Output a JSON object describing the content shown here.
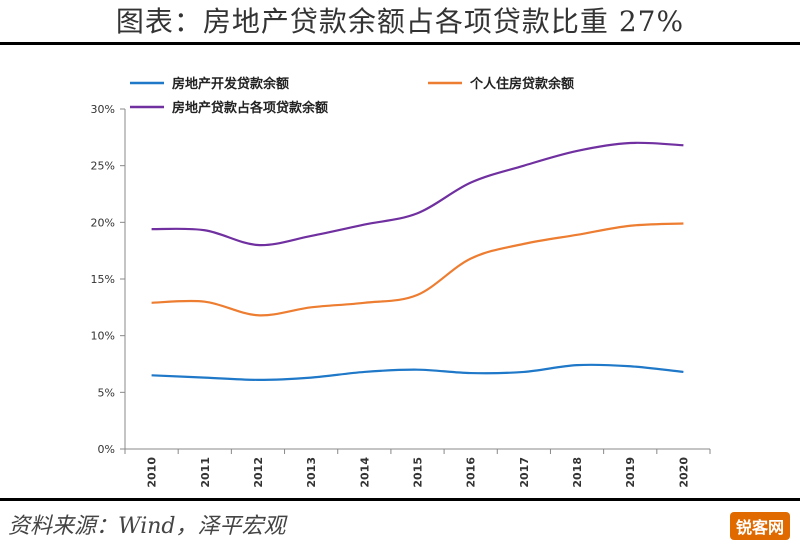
{
  "page": {
    "title": "图表：房地产贷款余额占各项贷款比重 27%",
    "source": "资料来源：Wind，泽平宏观",
    "watermark": "锐客网"
  },
  "chart_data": {
    "type": "line",
    "x": [
      "2010",
      "2011",
      "2012",
      "2013",
      "2014",
      "2015",
      "2016",
      "2017",
      "2018",
      "2019",
      "2020"
    ],
    "ylim": [
      0,
      30
    ],
    "yticks": [
      "0%",
      "5%",
      "10%",
      "15%",
      "20%",
      "25%",
      "30%"
    ],
    "grid": false,
    "legend_position": "top",
    "series": [
      {
        "name": "房地产开发贷款余额",
        "color": "#1f78c8",
        "values": [
          6.5,
          6.3,
          6.1,
          6.3,
          6.8,
          7.0,
          6.7,
          6.8,
          7.4,
          7.3,
          6.8
        ]
      },
      {
        "name": "个人住房贷款余额",
        "color": "#ed7d31",
        "values": [
          12.9,
          13.0,
          11.8,
          12.5,
          12.9,
          13.6,
          16.8,
          18.1,
          18.9,
          19.7,
          19.9
        ]
      },
      {
        "name": "房地产贷款占各项贷款余额",
        "color": "#7030a0",
        "values": [
          19.4,
          19.3,
          18.0,
          18.8,
          19.8,
          20.8,
          23.5,
          25.0,
          26.3,
          27.0,
          26.8
        ]
      }
    ]
  }
}
